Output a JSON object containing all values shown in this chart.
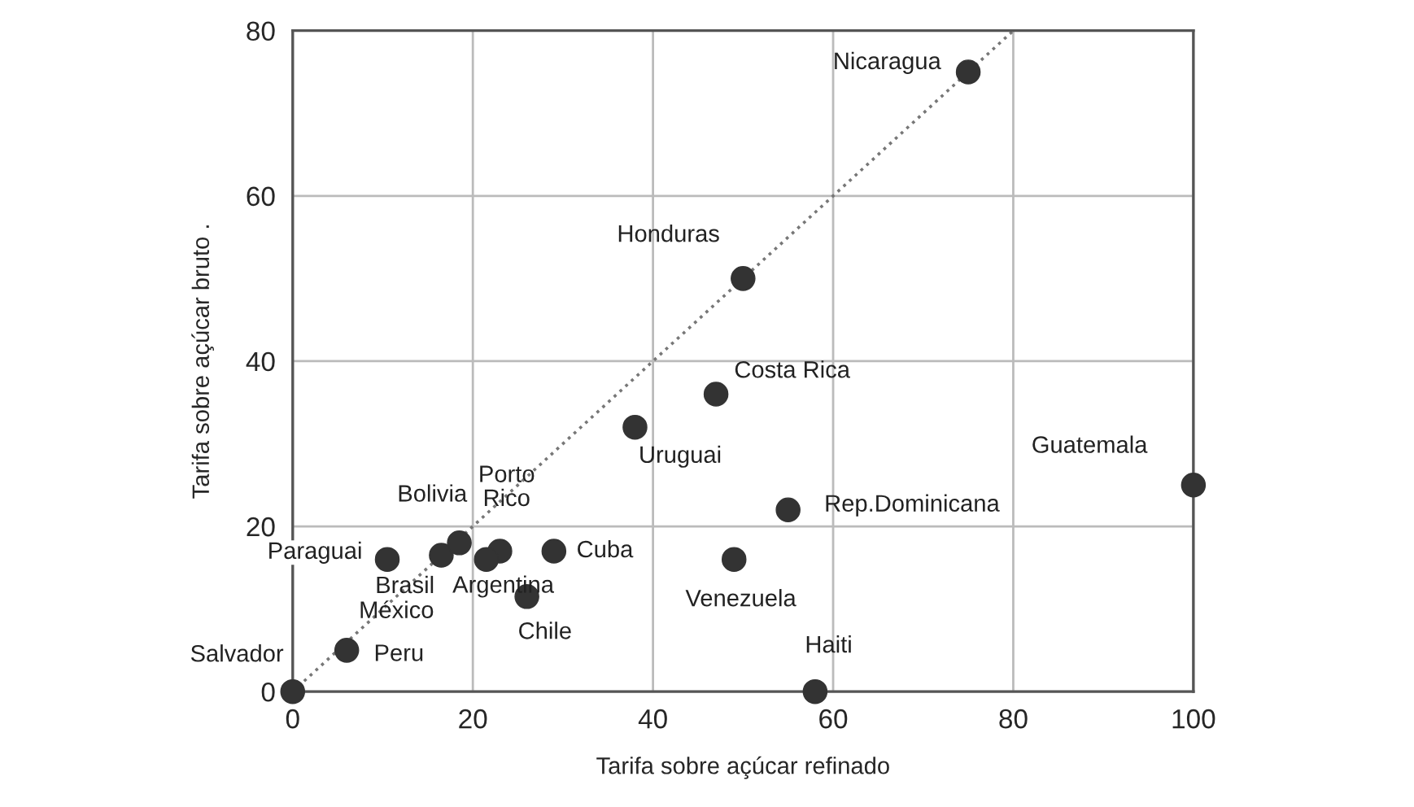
{
  "chart_data": {
    "type": "scatter",
    "xlabel": "Tarifa sobre açúcar refinado",
    "ylabel": "Tarifa sobre açúcar bruto .",
    "xlim": [
      0,
      100
    ],
    "ylim": [
      0,
      80
    ],
    "xticks": [
      0,
      20,
      40,
      60,
      80,
      100
    ],
    "yticks": [
      0,
      20,
      40,
      60,
      80
    ],
    "grid": true,
    "marker": "circle",
    "series": [
      {
        "color": "#333333",
        "x": [
          75,
          50,
          47,
          38,
          100,
          55,
          49,
          58,
          29,
          26,
          23,
          21.5,
          16.5,
          18.5,
          10.5,
          6,
          0
        ],
        "values": [
          75,
          50,
          36,
          32,
          25,
          22,
          16,
          0,
          17,
          11.5,
          17,
          16,
          16.5,
          18,
          16,
          5,
          0
        ]
      },
      {
        "type": "line",
        "color": "#777777",
        "line_style": "dotted",
        "marker": "none",
        "x": [
          0,
          80
        ],
        "values": [
          0,
          80
        ]
      }
    ],
    "annotations": [
      {
        "text": "Nicaragua",
        "x": 75,
        "y": 75
      },
      {
        "text": "Honduras",
        "x": 50,
        "y": 50
      },
      {
        "text": "Costa Rica",
        "x": 47,
        "y": 36
      },
      {
        "text": "Uruguai",
        "x": 38,
        "y": 32
      },
      {
        "text": "Guatemala",
        "x": 100,
        "y": 25
      },
      {
        "text": "Rep.Dominicana",
        "x": 55,
        "y": 22
      },
      {
        "text": "Venezuela",
        "x": 49,
        "y": 16
      },
      {
        "text": "Haiti",
        "x": 58,
        "y": 0
      },
      {
        "text": "Cuba",
        "x": 29,
        "y": 17
      },
      {
        "text": "Chile",
        "x": 26,
        "y": 11.5
      },
      {
        "text": "Porto Rico",
        "x": 23,
        "y": 17
      },
      {
        "text": "Argentina",
        "x": 21.5,
        "y": 16
      },
      {
        "text": "Brasil",
        "x": 16.5,
        "y": 16.5
      },
      {
        "text": "Bolivia",
        "x": 18.5,
        "y": 18
      },
      {
        "text": "Paraguai",
        "x": 10.5,
        "y": 16
      },
      {
        "text": "México",
        "x": 6,
        "y": 5
      },
      {
        "text": "Peru",
        "x": 6,
        "y": 5
      },
      {
        "text": "Salvador",
        "x": 0,
        "y": 0
      }
    ]
  }
}
